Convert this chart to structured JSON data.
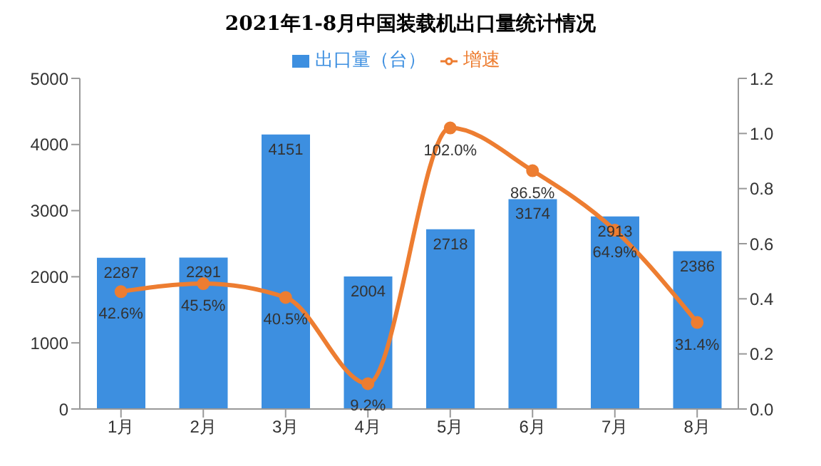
{
  "chart_data": {
    "type": "bar",
    "title": "2021年1-8月中国装载机出口量统计情况",
    "categories": [
      "1月",
      "2月",
      "3月",
      "4月",
      "5月",
      "6月",
      "7月",
      "8月"
    ],
    "series": [
      {
        "name": "出口量（台）",
        "color": "#3d8fe0",
        "values": [
          2287,
          2291,
          4151,
          2004,
          2718,
          3174,
          2913,
          2386
        ],
        "value_labels": [
          "2287",
          "2291",
          "4151",
          "2004",
          "2718",
          "3174",
          "2913",
          "2386"
        ]
      },
      {
        "name": "增速",
        "type": "line",
        "axis": "y2",
        "color": "#ed7d31",
        "values": [
          0.426,
          0.455,
          0.405,
          0.092,
          1.02,
          0.865,
          0.649,
          0.314
        ],
        "value_labels": [
          "42.6%",
          "45.5%",
          "40.5%",
          "9.2%",
          "102.0%",
          "86.5%",
          "64.9%",
          "31.4%"
        ]
      }
    ],
    "ylim": [
      0,
      5000
    ],
    "yticks": [
      0,
      1000,
      2000,
      3000,
      4000,
      5000
    ],
    "y2lim": [
      0,
      1.2
    ],
    "y2ticks": [
      {
        "value": 0,
        "label": "0.0"
      },
      {
        "value": 0.2,
        "label": "0.2"
      },
      {
        "value": 0.4,
        "label": "0.4"
      },
      {
        "value": 0.6,
        "label": "0.6"
      },
      {
        "value": 0.8,
        "label": "0.8"
      },
      {
        "value": 1,
        "label": "1.0"
      },
      {
        "value": 1.2,
        "label": "1.2"
      }
    ],
    "legend": "top",
    "grid": false,
    "marker": "circle"
  }
}
